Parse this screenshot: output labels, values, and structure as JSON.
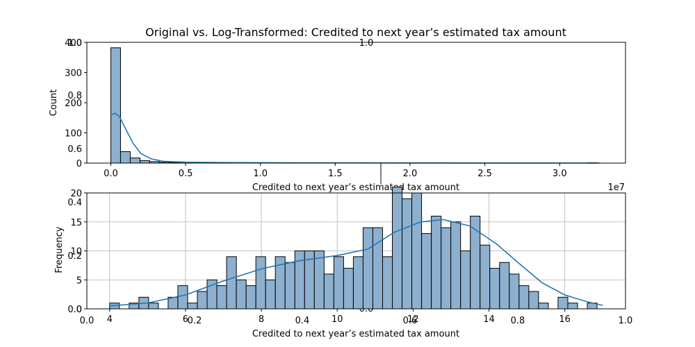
{
  "figure": {
    "title": "Original vs. Log-Transformed: Credited to next year’s estimated tax amount"
  },
  "colors": {
    "bar_fill": "#8db0cf",
    "kde_line": "#1f77b4",
    "grid": "#b0b0b0"
  },
  "chart_data": [
    {
      "type": "bar",
      "name": "original-histogram",
      "xlabel": "Credited to next year’s estimated tax amount",
      "ylabel": "Count",
      "x_offset_text": "1e7",
      "xlim": [
        -0.16,
        3.44
      ],
      "ylim": [
        0,
        400
      ],
      "grid": false,
      "x_ticks": [
        {
          "v": 0.0,
          "label": "0.0"
        },
        {
          "v": 0.5,
          "label": "0.5"
        },
        {
          "v": 1.0,
          "label": "1.0"
        },
        {
          "v": 1.5,
          "label": "1.5"
        },
        {
          "v": 2.0,
          "label": "2.0"
        },
        {
          "v": 2.5,
          "label": "2.5"
        },
        {
          "v": 3.0,
          "label": "3.0"
        }
      ],
      "y_ticks": [
        {
          "v": 0,
          "label": "0"
        },
        {
          "v": 100,
          "label": "100"
        },
        {
          "v": 200,
          "label": "200"
        },
        {
          "v": 300,
          "label": "300"
        },
        {
          "v": 400,
          "label": "400"
        }
      ],
      "bin_start": 0.0,
      "bin_width": 0.065,
      "values": [
        382,
        38,
        17,
        8,
        5,
        3,
        2,
        2,
        1,
        1,
        1,
        1,
        0,
        1,
        0,
        0,
        0,
        1,
        0,
        1,
        0,
        0,
        0,
        0,
        0,
        0,
        0,
        0,
        0,
        0,
        0,
        0,
        0,
        0,
        0,
        0,
        0,
        0,
        0,
        0,
        0,
        0,
        0,
        0,
        0,
        0,
        0,
        0,
        0,
        1
      ],
      "kde": [
        [
          0.0,
          160
        ],
        [
          0.03,
          165
        ],
        [
          0.06,
          152
        ],
        [
          0.1,
          112
        ],
        [
          0.15,
          65
        ],
        [
          0.2,
          32
        ],
        [
          0.27,
          14
        ],
        [
          0.35,
          6
        ],
        [
          0.5,
          3
        ],
        [
          0.8,
          1.5
        ],
        [
          1.2,
          1
        ],
        [
          1.6,
          0.6
        ],
        [
          2.0,
          0.4
        ],
        [
          2.6,
          0.2
        ],
        [
          3.27,
          0.1
        ]
      ]
    },
    {
      "type": "bar",
      "name": "log-histogram",
      "xlabel": "Credited to next year’s estimated tax amount",
      "ylabel": "Frequency",
      "xlim": [
        3.4,
        17.6
      ],
      "ylim": [
        0,
        20
      ],
      "grid": true,
      "x_ticks": [
        {
          "v": 4,
          "label": "4"
        },
        {
          "v": 6,
          "label": "6"
        },
        {
          "v": 8,
          "label": "8"
        },
        {
          "v": 10,
          "label": "10"
        },
        {
          "v": 12,
          "label": "12"
        },
        {
          "v": 14,
          "label": "14"
        },
        {
          "v": 16,
          "label": "16"
        }
      ],
      "y_ticks": [
        {
          "v": 0,
          "label": "0"
        },
        {
          "v": 5,
          "label": "5"
        },
        {
          "v": 10,
          "label": "10"
        },
        {
          "v": 15,
          "label": "15"
        },
        {
          "v": 20,
          "label": "20"
        }
      ],
      "bin_start": 4.0,
      "bin_width": 0.257,
      "values": [
        1,
        0,
        1,
        2,
        1,
        0,
        2,
        4,
        1,
        3,
        5,
        4,
        9,
        5,
        4,
        9,
        5,
        9,
        8,
        10,
        10,
        10,
        6,
        9,
        7,
        9,
        14,
        14,
        9,
        21,
        19,
        20,
        13,
        16,
        14,
        15,
        10,
        16,
        11,
        7,
        8,
        6,
        4,
        3,
        1,
        0,
        2,
        1,
        0,
        1
      ],
      "kde": [
        [
          4.0,
          0.5
        ],
        [
          5.0,
          1.0
        ],
        [
          6.0,
          2.4
        ],
        [
          7.0,
          4.8
        ],
        [
          8.0,
          6.9
        ],
        [
          9.0,
          8.3
        ],
        [
          10.0,
          9.2
        ],
        [
          10.8,
          10.3
        ],
        [
          11.5,
          13.2
        ],
        [
          12.2,
          15.0
        ],
        [
          12.8,
          15.4
        ],
        [
          13.5,
          14.3
        ],
        [
          14.2,
          11.2
        ],
        [
          14.8,
          7.8
        ],
        [
          15.4,
          4.5
        ],
        [
          16.0,
          2.4
        ],
        [
          16.6,
          1.2
        ],
        [
          17.0,
          0.6
        ]
      ]
    }
  ],
  "phantom_axes": {
    "x_labels_top": [
      "0.0",
      "0.2",
      "0.4",
      "0.6",
      "0.8",
      "1.0"
    ],
    "x_labels_bottom": [
      "0.0",
      "0.2",
      "0.4",
      "0.6",
      "0.8",
      "1.0"
    ],
    "y_labels_left": [
      "0.0",
      "0.2",
      "0.4",
      "0.6",
      "0.8",
      "1.0"
    ]
  }
}
